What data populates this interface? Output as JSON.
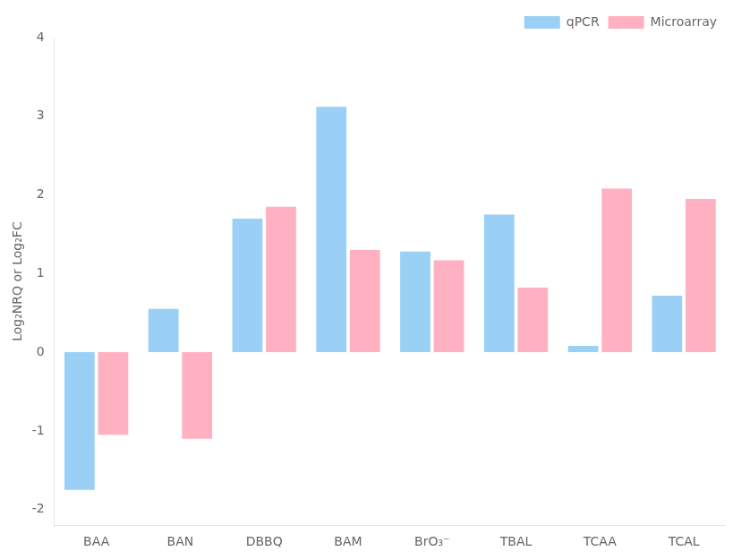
{
  "chart_data": {
    "type": "bar",
    "categories": [
      "BAA",
      "BAN",
      "DBBQ",
      "BAM",
      "BrO₃⁻",
      "TBAL",
      "TCAA",
      "TCAL"
    ],
    "series": [
      {
        "name": "qPCR",
        "values": [
          -1.75,
          0.55,
          1.7,
          3.12,
          1.28,
          1.75,
          0.08,
          0.72
        ]
      },
      {
        "name": "Microarray",
        "values": [
          -1.05,
          -1.1,
          1.85,
          1.3,
          1.17,
          0.82,
          2.08,
          1.95
        ]
      }
    ],
    "ylabel": "Log₂NRQ or Log₂FC",
    "ylim": [
      -2.2,
      4.0
    ],
    "yticks": [
      -2,
      -1,
      0,
      1,
      2,
      3,
      4
    ],
    "grid": false,
    "legend": "upper right"
  }
}
